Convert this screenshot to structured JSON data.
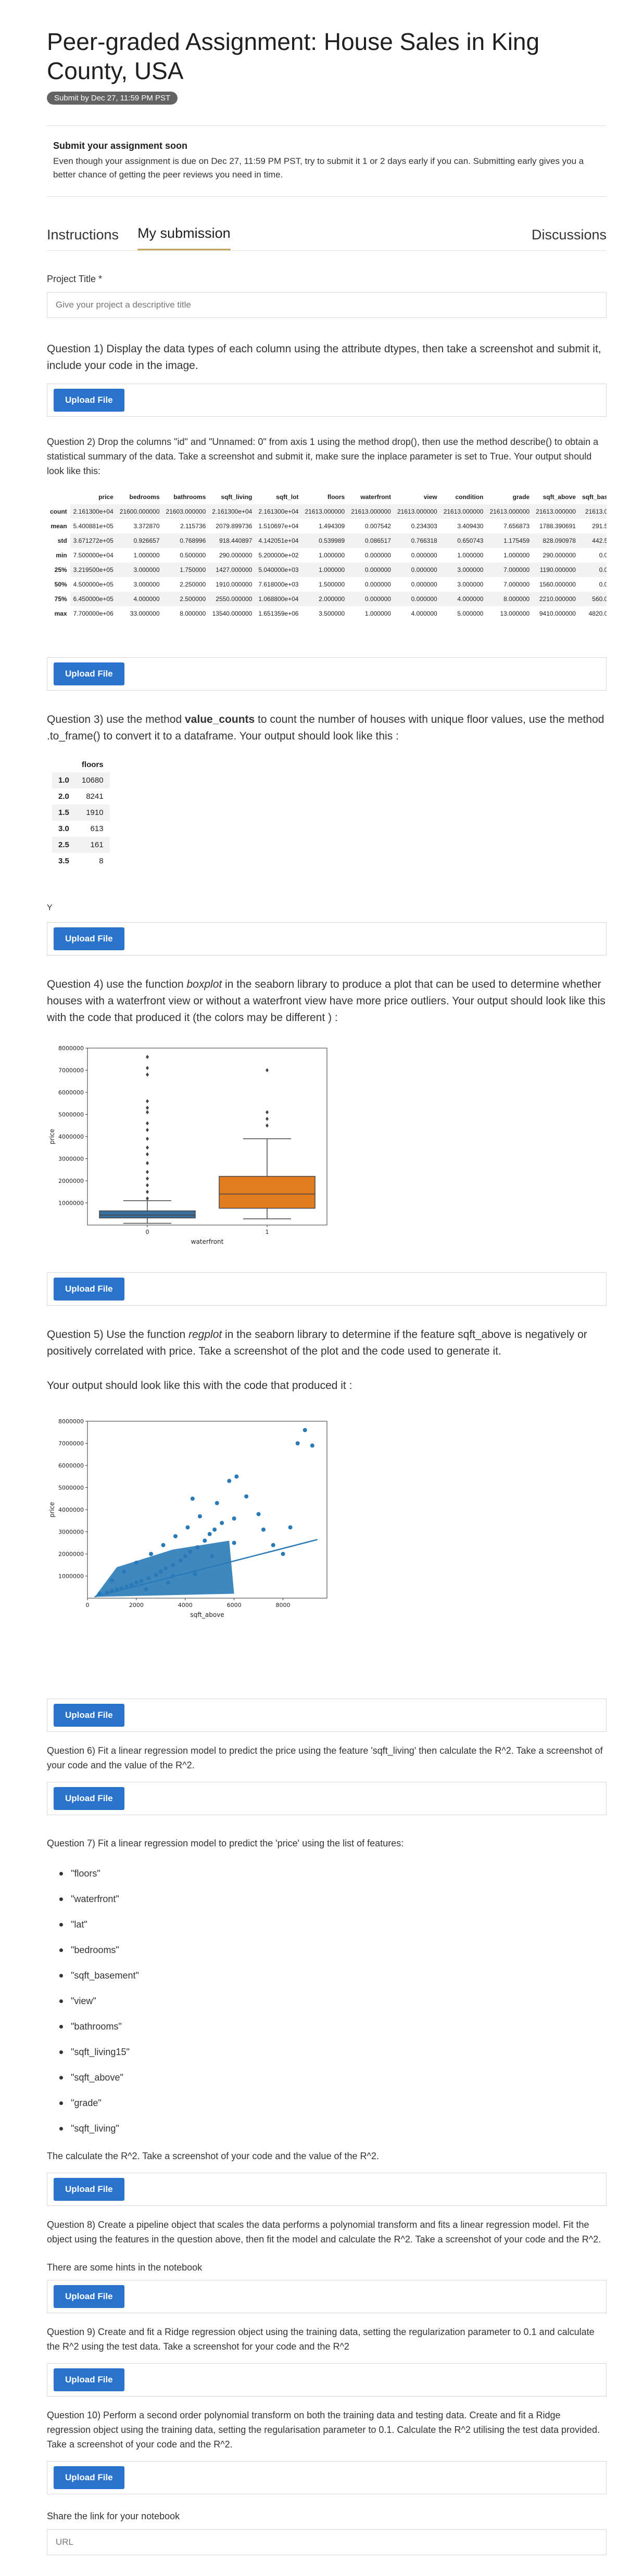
{
  "title": "Peer-graded Assignment: House Sales in King County, USA",
  "due_badge": "Submit by Dec 27, 11:59 PM PST",
  "notice": {
    "heading": "Submit your assignment soon",
    "body": "Even though your assignment is due on Dec 27, 11:59 PM PST, try to submit it 1 or 2 days early if you can. Submitting early gives you a better chance of getting the peer reviews you need in time."
  },
  "tabs": [
    "Instructions",
    "My submission",
    "Discussions"
  ],
  "project_title": {
    "label": "Project Title *",
    "placeholder": "Give your project a descriptive title"
  },
  "upload_label": "Upload File",
  "q1": "Question 1) Display the data types of each column using the attribute dtypes, then take a screenshot and submit it, include your code in the image.",
  "q2": "Question 2) Drop the columns \"id\" and \"Unnamed: 0\" from axis 1 using the method drop(), then use the method describe() to obtain a statistical summary of the data. Take a screenshot and submit it, make sure the inplace parameter is set to True. Your output should look like this:",
  "describe_table": {
    "columns": [
      "",
      "price",
      "bedrooms",
      "bathrooms",
      "sqft_living",
      "sqft_lot",
      "floors",
      "waterfront",
      "view",
      "condition",
      "grade",
      "sqft_above",
      "sqft_bas"
    ],
    "rows": [
      [
        "count",
        "2.161300e+04",
        "21600.000000",
        "21603.000000",
        "2.161300e+04",
        "2.161300e+04",
        "21613.000000",
        "21613.000000",
        "21613.000000",
        "21613.000000",
        "21613.000000",
        "21613.000000",
        "21613.0"
      ],
      [
        "mean",
        "5.400881e+05",
        "3.372870",
        "2.115736",
        "2079.899736",
        "1.510697e+04",
        "1.494309",
        "0.007542",
        "0.234303",
        "3.409430",
        "7.656873",
        "1788.390691",
        "291.5"
      ],
      [
        "std",
        "3.671272e+05",
        "0.926657",
        "0.768996",
        "918.440897",
        "4.142051e+04",
        "0.539989",
        "0.086517",
        "0.766318",
        "0.650743",
        "1.175459",
        "828.090978",
        "442.5"
      ],
      [
        "min",
        "7.500000e+04",
        "1.000000",
        "0.500000",
        "290.000000",
        "5.200000e+02",
        "1.000000",
        "0.000000",
        "0.000000",
        "1.000000",
        "1.000000",
        "290.000000",
        "0.0"
      ],
      [
        "25%",
        "3.219500e+05",
        "3.000000",
        "1.750000",
        "1427.000000",
        "5.040000e+03",
        "1.000000",
        "0.000000",
        "0.000000",
        "3.000000",
        "7.000000",
        "1190.000000",
        "0.0"
      ],
      [
        "50%",
        "4.500000e+05",
        "3.000000",
        "2.250000",
        "1910.000000",
        "7.618000e+03",
        "1.500000",
        "0.000000",
        "0.000000",
        "3.000000",
        "7.000000",
        "1560.000000",
        "0.0"
      ],
      [
        "75%",
        "6.450000e+05",
        "4.000000",
        "2.500000",
        "2550.000000",
        "1.068800e+04",
        "2.000000",
        "0.000000",
        "0.000000",
        "4.000000",
        "8.000000",
        "2210.000000",
        "560.0"
      ],
      [
        "max",
        "7.700000e+06",
        "33.000000",
        "8.000000",
        "13540.000000",
        "1.651359e+06",
        "3.500000",
        "1.000000",
        "4.000000",
        "5.000000",
        "13.000000",
        "9410.000000",
        "4820.0"
      ]
    ]
  },
  "q3": "Question 3) use the method value_counts to count the number of houses with unique floor values, use the method .to_frame() to convert it to a dataframe. Your output should look like this :",
  "floors_table": {
    "header": "floors",
    "rows": [
      [
        "1.0",
        "10680"
      ],
      [
        "2.0",
        "8241"
      ],
      [
        "1.5",
        "1910"
      ],
      [
        "3.0",
        "613"
      ],
      [
        "2.5",
        "161"
      ],
      [
        "3.5",
        "8"
      ]
    ]
  },
  "y_text": "Y",
  "q4": "Question 4) use the function boxplot in the seaborn library to produce a plot that can be used to determine whether houses with a waterfront view or without a waterfront view have more price outliers. Your output should look like this with the code that produced it (the colors may be different ) :",
  "chart_data": [
    {
      "type": "box",
      "xlabel": "waterfront",
      "ylabel": "price",
      "categories": [
        "0",
        "1"
      ],
      "ylim": [
        0,
        8000000
      ],
      "yticks": [
        1000000,
        2000000,
        3000000,
        4000000,
        5000000,
        6000000,
        7000000,
        8000000
      ],
      "boxes": [
        {
          "name": "0",
          "color": "#3b6f9e",
          "whisker_low": 80000,
          "q1": 320000,
          "median": 450000,
          "q3": 640000,
          "whisker_high": 1100000,
          "outliers": [
            1200000,
            1500000,
            1800000,
            2100000,
            2400000,
            2800000,
            3200000,
            3500000,
            3900000,
            4300000,
            4600000,
            5100000,
            5300000,
            5600000,
            6800000,
            7100000,
            7600000
          ]
        },
        {
          "name": "1",
          "color": "#e07b20",
          "whisker_low": 280000,
          "q1": 760000,
          "median": 1400000,
          "q3": 2200000,
          "whisker_high": 3900000,
          "outliers": [
            4500000,
            4800000,
            5100000,
            7000000
          ]
        }
      ]
    },
    {
      "type": "scatter",
      "xlabel": "sqft_above",
      "ylabel": "price",
      "xlim": [
        0,
        9800
      ],
      "ylim": [
        0,
        8000000
      ],
      "xticks": [
        0,
        2000,
        4000,
        6000,
        8000
      ],
      "yticks": [
        1000000,
        2000000,
        3000000,
        4000000,
        5000000,
        6000000,
        7000000,
        8000000
      ],
      "color": "#2a7ab8",
      "regression": {
        "x": [
          290,
          9410
        ],
        "y": [
          60000,
          2650000
        ]
      },
      "points": [
        [
          500,
          200000
        ],
        [
          800,
          250000
        ],
        [
          1000,
          350000
        ],
        [
          1200,
          400000
        ],
        [
          1400,
          450000
        ],
        [
          1600,
          520000
        ],
        [
          1800,
          600000
        ],
        [
          2000,
          700000
        ],
        [
          2200,
          780000
        ],
        [
          2500,
          900000
        ],
        [
          2800,
          1050000
        ],
        [
          3000,
          1200000
        ],
        [
          3200,
          1350000
        ],
        [
          3500,
          1500000
        ],
        [
          3800,
          1700000
        ],
        [
          4000,
          1900000
        ],
        [
          4200,
          2100000
        ],
        [
          4500,
          2300000
        ],
        [
          4800,
          2600000
        ],
        [
          5000,
          2900000
        ],
        [
          5200,
          3100000
        ],
        [
          5500,
          3400000
        ],
        [
          6000,
          3600000
        ],
        [
          1500,
          1200000
        ],
        [
          2000,
          1600000
        ],
        [
          2600,
          2000000
        ],
        [
          3100,
          2400000
        ],
        [
          3600,
          2800000
        ],
        [
          4100,
          3200000
        ],
        [
          4600,
          3700000
        ],
        [
          5300,
          4300000
        ],
        [
          5800,
          5300000
        ],
        [
          6100,
          5500000
        ],
        [
          6500,
          4600000
        ],
        [
          7000,
          3800000
        ],
        [
          7600,
          2400000
        ],
        [
          8000,
          2000000
        ],
        [
          8300,
          3200000
        ],
        [
          8600,
          7000000
        ],
        [
          9200,
          6900000
        ],
        [
          8900,
          7600000
        ],
        [
          4300,
          4500000
        ],
        [
          6000,
          2500000
        ],
        [
          7200,
          3100000
        ],
        [
          3500,
          1000000
        ],
        [
          1000,
          800000
        ],
        [
          2400,
          400000
        ],
        [
          3300,
          700000
        ],
        [
          4400,
          1100000
        ],
        [
          5100,
          1900000
        ]
      ]
    }
  ],
  "q5a": "Question 5) Use the function regplot in the seaborn library to determine if the feature sqft_above is negatively or positively correlated with price. Take a screenshot of the plot and the code used to generate it.",
  "q5b": "Your output should look like this with the code that produced it :",
  "q6": "Question 6) Fit a linear regression model to predict the price using the feature 'sqft_living' then calculate the R^2. Take a screenshot of your code and the value of the R^2.",
  "q7": "Question 7) Fit a linear regression model to predict the 'price' using the list of features:",
  "features": [
    "\"floors\"",
    "\"waterfront\"",
    "\"lat\"",
    "\"bedrooms\"",
    "\"sqft_basement\"",
    "\"view\"",
    "\"bathrooms\"",
    "\"sqft_living15\"",
    "\"sqft_above\"",
    "\"grade\"",
    "\"sqft_living\""
  ],
  "q7b": "The calculate the R^2. Take a screenshot of your code and the value of the R^2.",
  "q8": "Question 8) Create a pipeline object that scales the data performs a polynomial transform and fits a linear regression model. Fit the object using the features in the question above, then fit the model and calculate the R^2. Take a screenshot of your code and the R^2.",
  "q8b": "There are some hints in the notebook",
  "q9": "Question 9) Create and fit a Ridge regression object using the training data, setting the regularization parameter to 0.1 and calculate the R^2 using the test data. Take a screenshot for your code and the R^2",
  "q10": "Question 10) Perform a second order polynomial transform on both the training data and testing data. Create and fit a Ridge regression object using the training data, setting the regularisation parameter to 0.1. Calculate the R^2 utilising the test data provided. Take a screenshot of your code and the R^2.",
  "share": {
    "label": "Share the link for your notebook",
    "placeholder": "URL"
  }
}
